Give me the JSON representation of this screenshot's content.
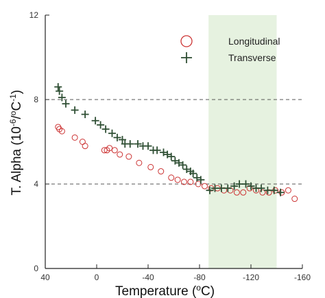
{
  "chart_data": {
    "type": "scatter",
    "xlabel": {
      "main": "Temperature (",
      "sup": "o",
      "tail": "C)"
    },
    "ylabel": {
      "main": "T. Alpha (10",
      "sup1": "-6",
      "mid": "/",
      "sup2": "o",
      "mid2": "C",
      "sup3": "-1",
      "tail": ")"
    },
    "x_range": [
      40,
      -160
    ],
    "y_range": [
      0,
      12
    ],
    "x_ticks": [
      "40",
      "0",
      "-40",
      "-80",
      "-120",
      "-160"
    ],
    "x_tick_values": [
      40,
      0,
      -40,
      -80,
      -120,
      -160
    ],
    "y_ticks": [
      "0",
      "4",
      "8",
      "12"
    ],
    "y_tick_values": [
      0,
      4,
      8,
      12
    ],
    "reference_lines_y": [
      4,
      8
    ],
    "shaded_region_x": [
      -87,
      -140
    ],
    "legend_placement": "top-right",
    "colors": {
      "longitudinal": "#cc3333",
      "transverse": "#2f4f34",
      "shade": "#e6f2e0",
      "grid": "#555555"
    },
    "series": [
      {
        "name": "Longitudinal",
        "marker": "circle",
        "x": [
          30,
          29,
          27,
          17,
          11,
          9,
          -6,
          -8,
          -10,
          -14,
          -18,
          -25,
          -33,
          -42,
          -50,
          -58,
          -63,
          -68,
          -73,
          -79,
          -84,
          -89,
          -94,
          -99,
          -104,
          -109,
          -114,
          -119,
          -124,
          -129,
          -134,
          -139,
          -144,
          -149,
          -154
        ],
        "y": [
          6.7,
          6.6,
          6.5,
          6.2,
          6.0,
          5.8,
          5.6,
          5.6,
          5.7,
          5.6,
          5.4,
          5.3,
          5.0,
          4.8,
          4.6,
          4.3,
          4.2,
          4.1,
          4.1,
          4.0,
          3.9,
          3.8,
          3.8,
          3.7,
          3.7,
          3.6,
          3.6,
          3.8,
          3.7,
          3.6,
          3.6,
          3.7,
          3.6,
          3.7,
          3.3
        ]
      },
      {
        "name": "Transverse",
        "marker": "plus",
        "x": [
          30,
          29,
          27,
          24,
          17,
          9,
          1,
          -3,
          -7,
          -12,
          -16,
          -20,
          -22,
          -26,
          -32,
          -36,
          -40,
          -44,
          -47,
          -52,
          -55,
          -58,
          -61,
          -64,
          -67,
          -70,
          -73,
          -75,
          -78,
          -81,
          -88,
          -92,
          -97,
          -102,
          -107,
          -111,
          -116,
          -120,
          -124,
          -128,
          -133,
          -138,
          -143
        ],
        "y": [
          8.6,
          8.4,
          8.1,
          7.8,
          7.5,
          7.3,
          7.0,
          6.8,
          6.6,
          6.4,
          6.2,
          6.1,
          5.9,
          5.9,
          5.9,
          5.8,
          5.8,
          5.6,
          5.6,
          5.5,
          5.4,
          5.3,
          5.1,
          5.0,
          4.9,
          4.7,
          4.6,
          4.5,
          4.3,
          4.2,
          3.7,
          3.8,
          3.8,
          3.8,
          3.9,
          4.0,
          4.0,
          3.9,
          3.8,
          3.8,
          3.7,
          3.7,
          3.6
        ]
      }
    ]
  }
}
